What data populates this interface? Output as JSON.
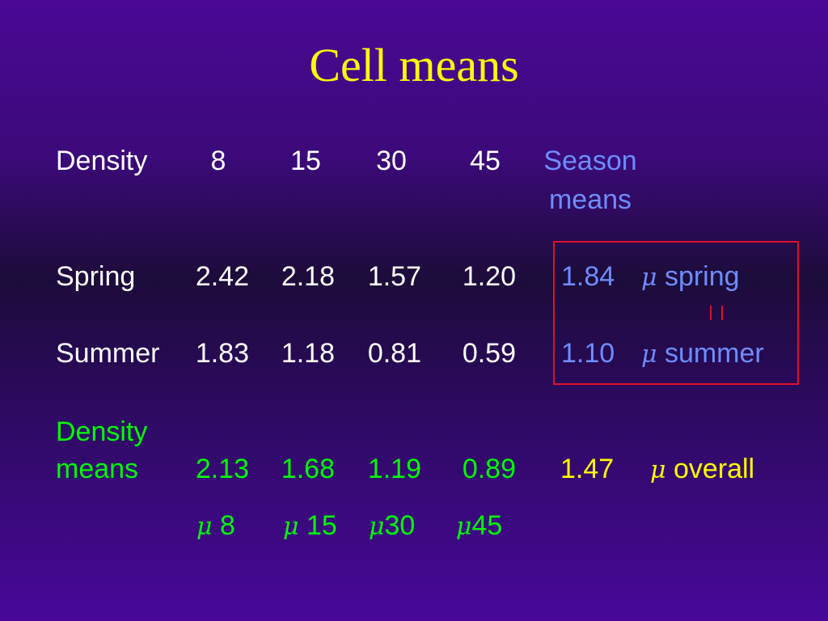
{
  "title": "Cell means",
  "header": {
    "row_label": "Density",
    "columns": [
      "8",
      "15",
      "30",
      "45"
    ],
    "season_means_line1": "Season",
    "season_means_line2": "means"
  },
  "rows": [
    {
      "label": "Spring",
      "values": [
        "2.42",
        "2.18",
        "1.57",
        "1.20"
      ],
      "mean": "1.84",
      "mu_symbol": "μ",
      "mu_label": "spring"
    },
    {
      "label": "Summer",
      "values": [
        "1.83",
        "1.18",
        "0.81",
        "0.59"
      ],
      "mean": "1.10",
      "mu_symbol": "μ",
      "mu_label": "summer"
    }
  ],
  "density_means": {
    "label_line1": "Density",
    "label_line2": "means",
    "values": [
      "2.13",
      "1.68",
      "1.19",
      "0.89"
    ],
    "overall": "1.47",
    "mu_symbol": "μ",
    "mu_label": "overall"
  },
  "density_mu": {
    "mu_symbol": "μ",
    "labels": [
      "8",
      "15",
      "30",
      "45"
    ]
  },
  "colors": {
    "title": "#ffff00",
    "text": "#ffffff",
    "season": "#6f8cff",
    "density": "#00ff00",
    "overall": "#ffff00",
    "box": "#e0102a"
  }
}
